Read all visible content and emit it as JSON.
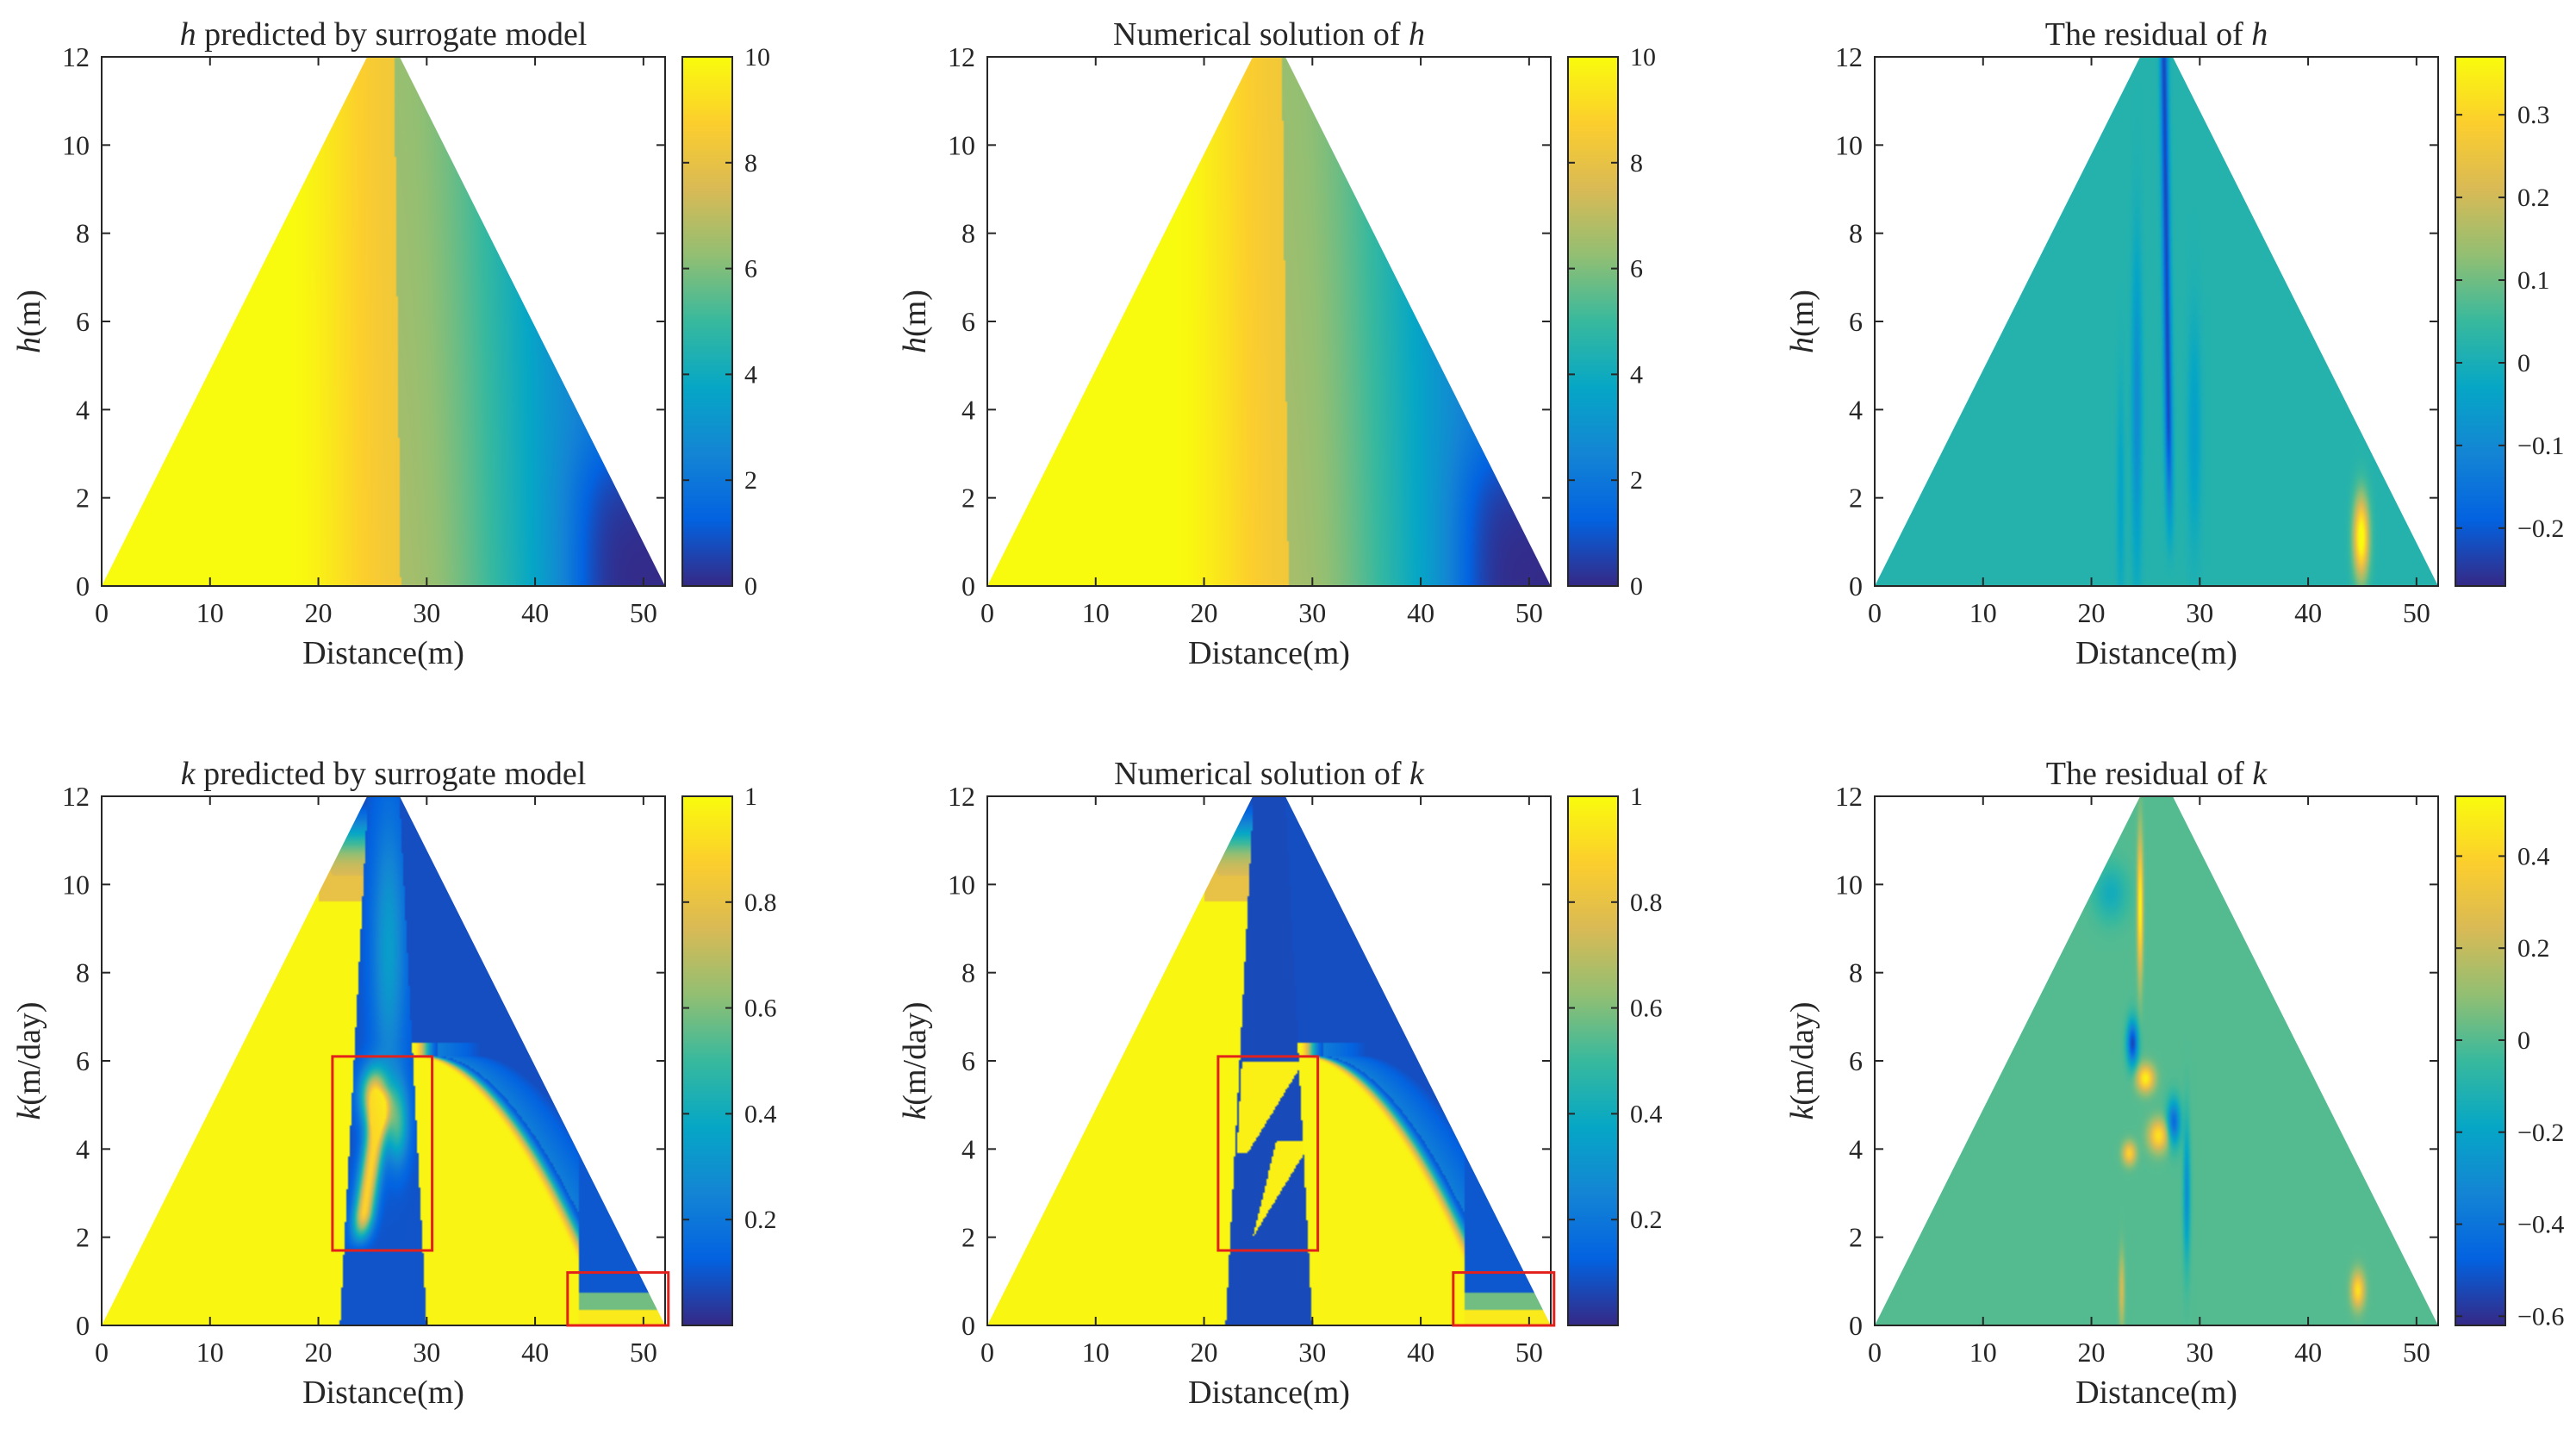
{
  "colors": {
    "parula": [
      "#352a87",
      "#0363e1",
      "#1485d4",
      "#06a7c6",
      "#38b99e",
      "#92bf73",
      "#d9ba56",
      "#fcce2e",
      "#f9fb0e"
    ],
    "annotation": "#e3211c",
    "axis": "#262626"
  },
  "chart_data": [
    {
      "id": "h-pred",
      "type": "heatmap",
      "title_var": "h",
      "title_rest": " predicted by surrogate model",
      "xlabel": "Distance(m)",
      "ylabel_var": "h",
      "ylabel_rest": "(m)",
      "xlim": [
        0,
        52
      ],
      "ylim": [
        0,
        12
      ],
      "xticks": [
        0,
        10,
        20,
        30,
        40,
        50
      ],
      "yticks": [
        0,
        2,
        4,
        6,
        8,
        10,
        12
      ],
      "clim": [
        0,
        10
      ],
      "cbticks": [
        0,
        2,
        4,
        6,
        8,
        10
      ],
      "cbtick_labels": [
        "0",
        "2",
        "4",
        "6",
        "8",
        "10"
      ],
      "domain": {
        "shape": "trapezoid",
        "base": [
          0,
          52
        ],
        "crest": [
          24.5,
          27.5
        ],
        "height": 12
      },
      "field": {
        "kind": "h",
        "variant": "pred"
      },
      "annotations": []
    },
    {
      "id": "h-num",
      "type": "heatmap",
      "title_var": "h",
      "title_prefix": "Numerical solution of ",
      "xlabel": "Distance(m)",
      "ylabel_var": "h",
      "ylabel_rest": "(m)",
      "xlim": [
        0,
        52
      ],
      "ylim": [
        0,
        12
      ],
      "xticks": [
        0,
        10,
        20,
        30,
        40,
        50
      ],
      "yticks": [
        0,
        2,
        4,
        6,
        8,
        10,
        12
      ],
      "clim": [
        0,
        10
      ],
      "cbticks": [
        0,
        2,
        4,
        6,
        8,
        10
      ],
      "cbtick_labels": [
        "0",
        "2",
        "4",
        "6",
        "8",
        "10"
      ],
      "domain": {
        "shape": "trapezoid",
        "base": [
          0,
          52
        ],
        "crest": [
          24.5,
          27.5
        ],
        "height": 12
      },
      "field": {
        "kind": "h",
        "variant": "num"
      },
      "annotations": []
    },
    {
      "id": "h-res",
      "type": "heatmap",
      "title_var": "h",
      "title_prefix": "The residual of ",
      "xlabel": "Distance(m)",
      "ylabel_var": "h",
      "ylabel_rest": "(m)",
      "xlim": [
        0,
        52
      ],
      "ylim": [
        0,
        12
      ],
      "xticks": [
        0,
        10,
        20,
        30,
        40,
        50
      ],
      "yticks": [
        0,
        2,
        4,
        6,
        8,
        10,
        12
      ],
      "clim": [
        -0.27,
        0.37
      ],
      "cbticks": [
        -0.2,
        -0.1,
        0,
        0.1,
        0.2,
        0.3
      ],
      "cbtick_labels": [
        "−0.2",
        "−0.1",
        "0",
        "0.1",
        "0.2",
        "0.3"
      ],
      "domain": {
        "shape": "trapezoid",
        "base": [
          0,
          52
        ],
        "crest": [
          24.5,
          27.5
        ],
        "height": 12
      },
      "field": {
        "kind": "hres"
      },
      "annotations": []
    },
    {
      "id": "k-pred",
      "type": "heatmap",
      "title_var": "k",
      "title_rest": " predicted by surrogate model",
      "xlabel": "Distance(m)",
      "ylabel_var": "k",
      "ylabel_rest": "(m/day)",
      "xlim": [
        0,
        52
      ],
      "ylim": [
        0,
        12
      ],
      "xticks": [
        0,
        10,
        20,
        30,
        40,
        50
      ],
      "yticks": [
        0,
        2,
        4,
        6,
        8,
        10,
        12
      ],
      "clim": [
        0,
        1
      ],
      "cbticks": [
        0.2,
        0.4,
        0.6,
        0.8,
        1
      ],
      "cbtick_labels": [
        "0.2",
        "0.4",
        "0.6",
        "0.8",
        "1"
      ],
      "domain": {
        "shape": "trapezoid",
        "base": [
          0,
          52
        ],
        "crest": [
          24.5,
          27.5
        ],
        "height": 12
      },
      "field": {
        "kind": "k",
        "variant": "pred"
      },
      "annotations": [
        {
          "x0": 21.3,
          "x1": 30.5,
          "y0": 1.7,
          "y1": 6.1
        },
        {
          "x0": 43,
          "x1": 52.3,
          "y0": 0,
          "y1": 1.2
        }
      ]
    },
    {
      "id": "k-num",
      "type": "heatmap",
      "title_var": "k",
      "title_prefix": "Numerical solution of ",
      "xlabel": "Distance(m)",
      "ylabel_var": "k",
      "ylabel_rest": "(m/day)",
      "xlim": [
        0,
        52
      ],
      "ylim": [
        0,
        12
      ],
      "xticks": [
        0,
        10,
        20,
        30,
        40,
        50
      ],
      "yticks": [
        0,
        2,
        4,
        6,
        8,
        10,
        12
      ],
      "clim": [
        0,
        1
      ],
      "cbticks": [
        0.2,
        0.4,
        0.6,
        0.8,
        1
      ],
      "cbtick_labels": [
        "0.2",
        "0.4",
        "0.6",
        "0.8",
        "1"
      ],
      "domain": {
        "shape": "trapezoid",
        "base": [
          0,
          52
        ],
        "crest": [
          24.5,
          27.5
        ],
        "height": 12
      },
      "field": {
        "kind": "k",
        "variant": "num"
      },
      "annotations": [
        {
          "x0": 21.3,
          "x1": 30.5,
          "y0": 1.7,
          "y1": 6.1
        },
        {
          "x0": 43,
          "x1": 52.3,
          "y0": 0,
          "y1": 1.2
        }
      ]
    },
    {
      "id": "k-res",
      "type": "heatmap",
      "title_var": "k",
      "title_prefix": "The residual of ",
      "xlabel": "Distance(m)",
      "ylabel_var": "k",
      "ylabel_rest": "(m/day)",
      "xlim": [
        0,
        52
      ],
      "ylim": [
        0,
        12
      ],
      "xticks": [
        0,
        10,
        20,
        30,
        40,
        50
      ],
      "yticks": [
        0,
        2,
        4,
        6,
        8,
        10,
        12
      ],
      "clim": [
        -0.62,
        0.53
      ],
      "cbticks": [
        -0.6,
        -0.4,
        -0.2,
        0,
        0.2,
        0.4
      ],
      "cbtick_labels": [
        "−0.6",
        "−0.4",
        "−0.2",
        "0",
        "0.2",
        "0.4"
      ],
      "domain": {
        "shape": "trapezoid",
        "base": [
          0,
          52
        ],
        "crest": [
          24.5,
          27.5
        ],
        "height": 12
      },
      "field": {
        "kind": "kres"
      },
      "annotations": []
    }
  ]
}
